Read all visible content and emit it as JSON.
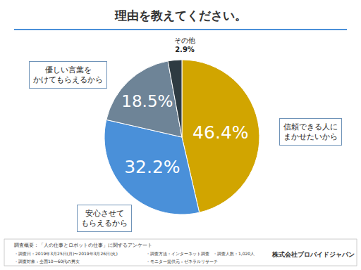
{
  "chart_data": {
    "type": "pie",
    "title": "理由を教えてください。",
    "categories": [
      "信頼できる人に\nまかせたいから",
      "安心させて\nもらえるから",
      "優しい言葉を\nかけてもらえるから",
      "その他"
    ],
    "values": [
      46.4,
      32.2,
      18.5,
      2.9
    ],
    "value_labels": [
      "46.4%",
      "32.2%",
      "18.5%",
      "2.9%"
    ],
    "colors": [
      "#D1A500",
      "#4A90D9",
      "#6E8497",
      "#2E3B42"
    ],
    "data_labels": true,
    "survey_title": "調査概要：「人の仕事とロボットの仕事」に関するアンケート",
    "survey_items": [
      "・調査日：2019年3月25日(月)〜2019年3月26日(火)",
      "・調査方法：インターネット調査",
      "・調査人数：1,020人",
      "・調査対象：全国10〜60代の男女",
      "・モニター提供元：ゼネラルリサーチ"
    ],
    "source": "株式会社プロバイドジャパン"
  }
}
